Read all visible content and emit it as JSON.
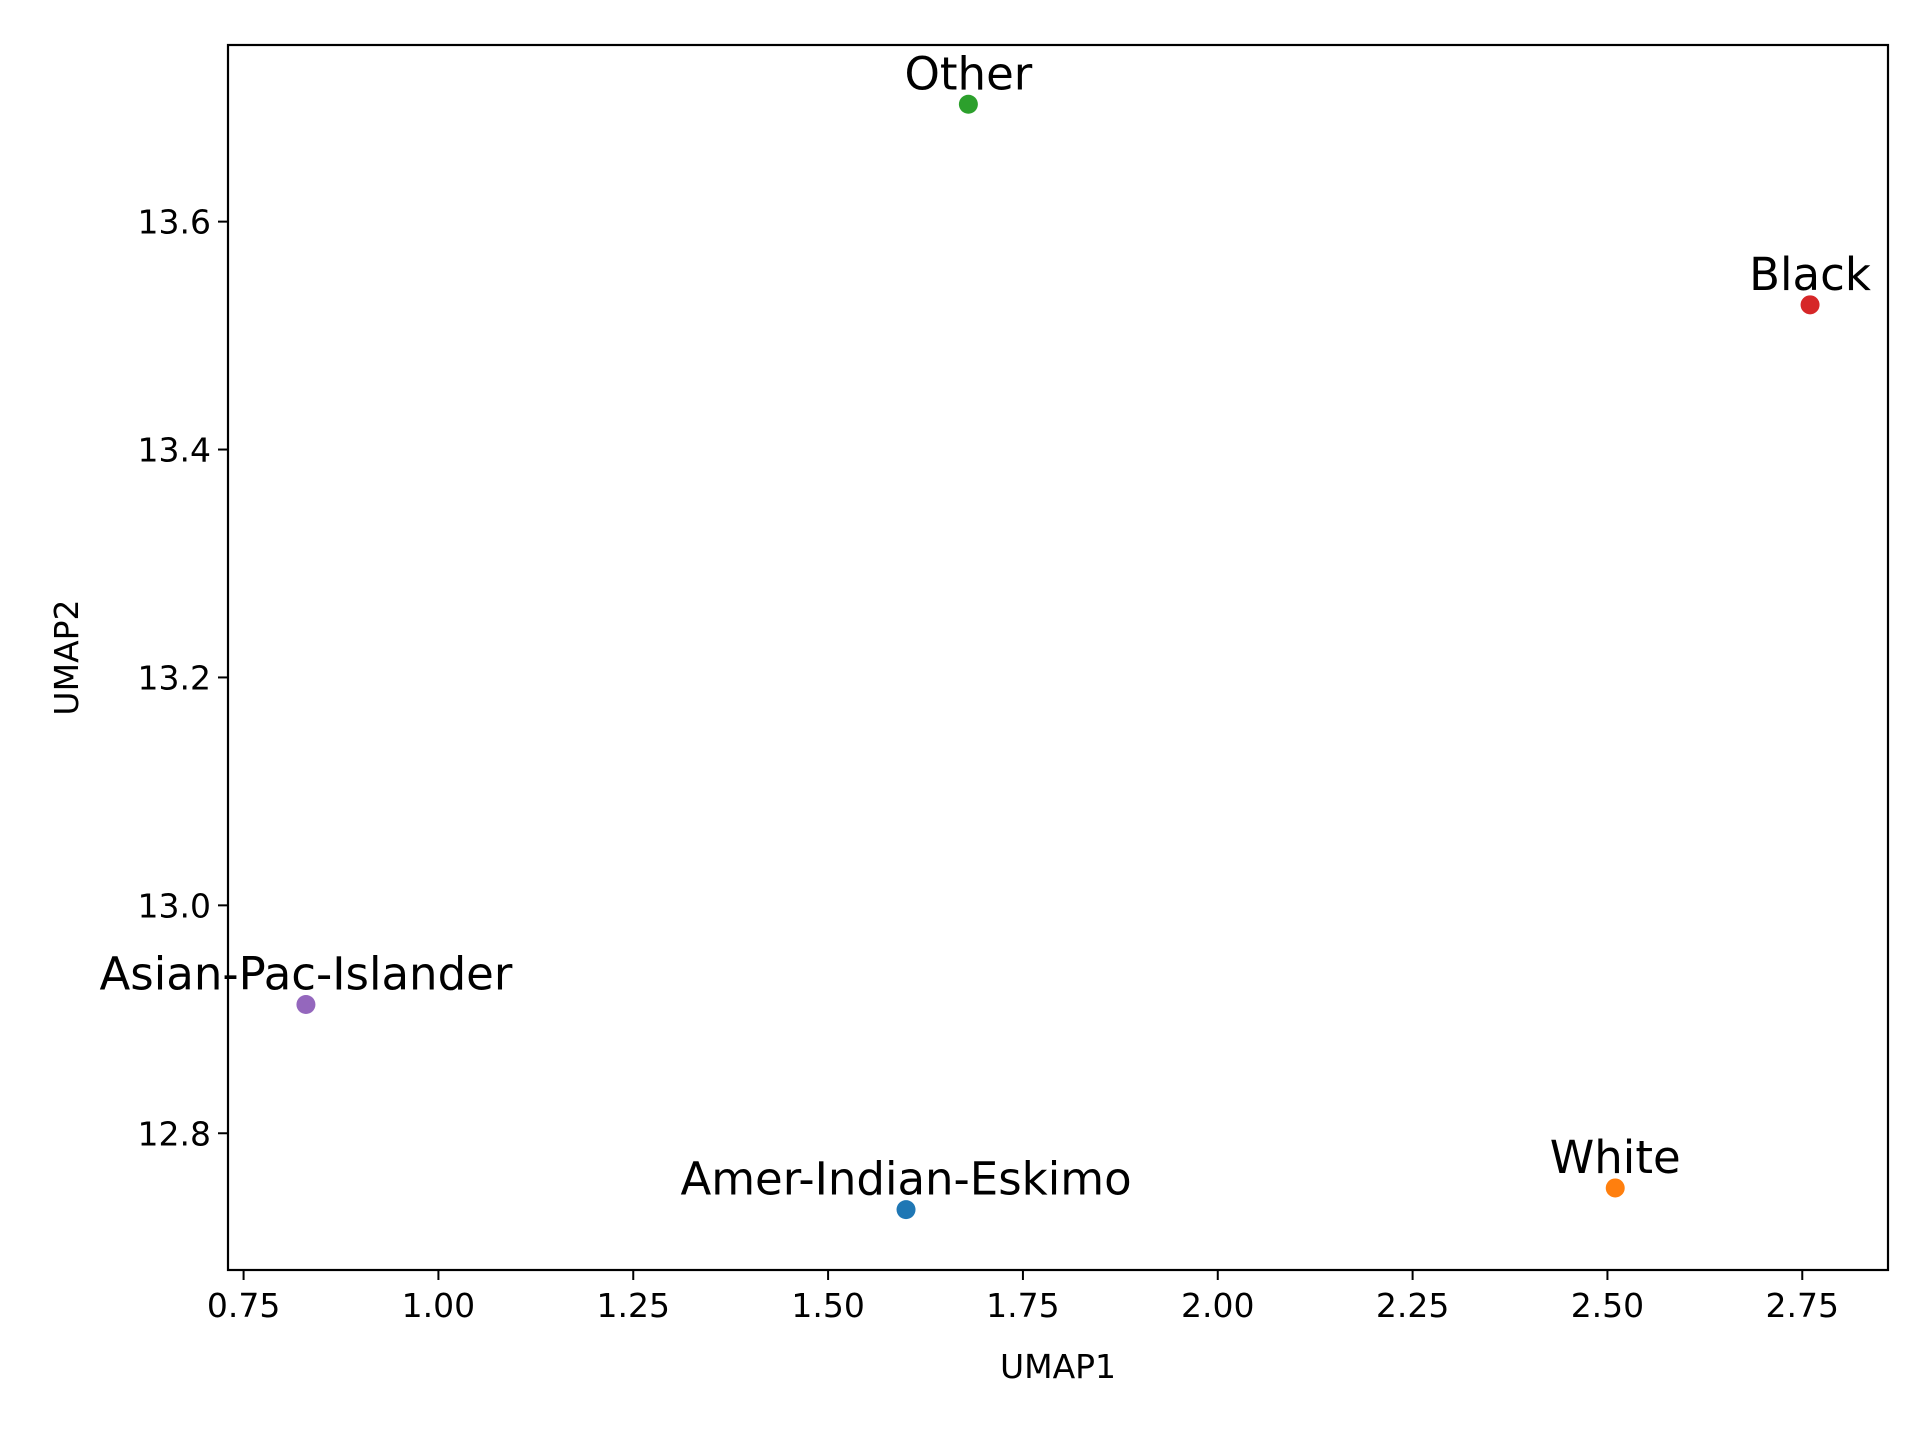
{
  "chart_data": {
    "type": "scatter",
    "title": "",
    "xlabel": "UMAP1",
    "ylabel": "UMAP2",
    "xlim": [
      0.73,
      2.86
    ],
    "ylim": [
      12.68,
      13.755
    ],
    "grid": false,
    "legend": "none",
    "x_ticks": [
      0.75,
      1.0,
      1.25,
      1.5,
      1.75,
      2.0,
      2.25,
      2.5,
      2.75
    ],
    "x_tick_labels": [
      "0.75",
      "1.00",
      "1.25",
      "1.50",
      "1.75",
      "2.00",
      "2.25",
      "2.50",
      "2.75"
    ],
    "y_ticks": [
      12.8,
      13.0,
      13.2,
      13.4,
      13.6
    ],
    "y_tick_labels": [
      "12.8",
      "13.0",
      "13.2",
      "13.4",
      "13.6"
    ],
    "points": [
      {
        "label": "Amer-Indian-Eskimo",
        "x": 1.6,
        "y": 12.733,
        "color": "#1f77b4"
      },
      {
        "label": "White",
        "x": 2.51,
        "y": 12.752,
        "color": "#ff7f0e"
      },
      {
        "label": "Other",
        "x": 1.68,
        "y": 13.703,
        "color": "#2ca02c"
      },
      {
        "label": "Black",
        "x": 2.76,
        "y": 13.527,
        "color": "#d62728"
      },
      {
        "label": "Asian-Pac-Islander",
        "x": 0.83,
        "y": 12.913,
        "color": "#9467bd"
      }
    ]
  }
}
